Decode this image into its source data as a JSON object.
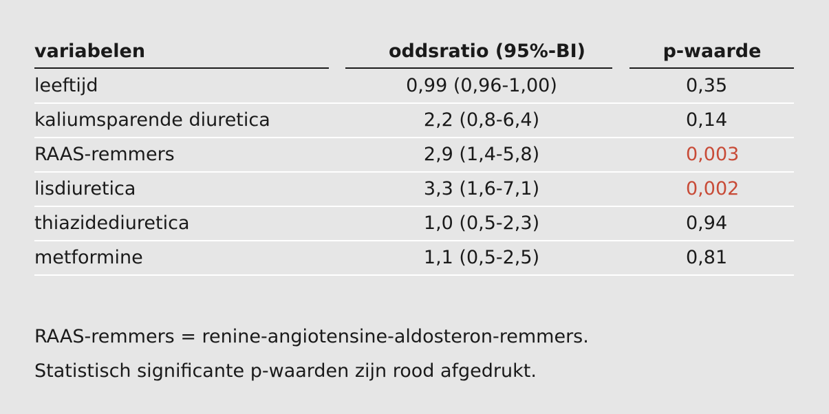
{
  "table": {
    "columns": [
      "variabelen",
      "oddsratio (95%-BI)",
      "p-waarde"
    ],
    "rows": [
      {
        "cells": [
          "leeftijd",
          "0,99 (0,96-1,00)",
          "0,35"
        ],
        "significant": false
      },
      {
        "cells": [
          "kaliumsparende diuretica",
          "2,2 (0,8-6,4)",
          "0,14"
        ],
        "significant": false
      },
      {
        "cells": [
          "RAAS-remmers",
          "2,9 (1,4-5,8)",
          "0,003"
        ],
        "significant": true
      },
      {
        "cells": [
          "lisdiuretica",
          "3,3 (1,6-7,1)",
          "0,002"
        ],
        "significant": true
      },
      {
        "cells": [
          "thiazidediuretica",
          "1,0 (0,5-2,3)",
          "0,94"
        ],
        "significant": false
      },
      {
        "cells": [
          "metformine",
          "1,1 (0,5-2,5)",
          "0,81"
        ],
        "significant": false
      }
    ],
    "significant_color": "#c84b37"
  },
  "notes": [
    "RAAS-remmers = renine-angiotensine-aldosteron-remmers.",
    "Statistisch significante p-waarden zijn rood afgedrukt."
  ]
}
